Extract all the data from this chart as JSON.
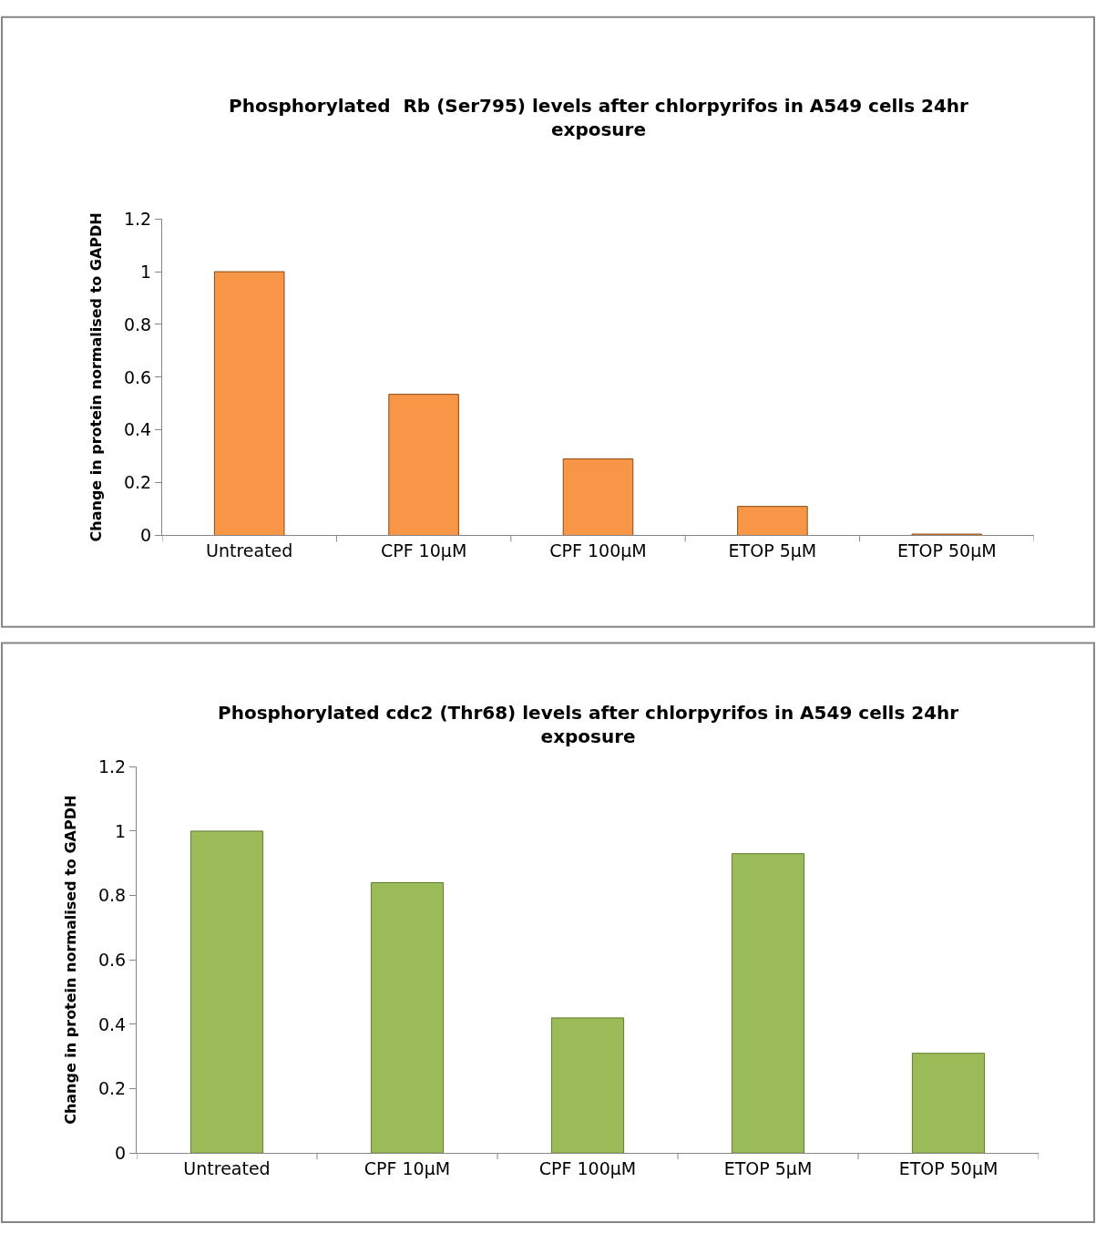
{
  "chart_data": [
    {
      "type": "bar",
      "title": "Phosphorylated  Rb (Ser795) levels after chlorpyrifos in A549 cells 24hr\nexposure",
      "ylabel": "Change in protein normalised to GAPDH",
      "categories": [
        "Untreated",
        "CPF 10µM",
        "CPF 100µM",
        "ETOP 5µM",
        "ETOP 50µM"
      ],
      "series": [
        {
          "color": "#f79646",
          "values": [
            1.0,
            0.535,
            0.29,
            0.11,
            0.005
          ]
        }
      ],
      "ylim": [
        0,
        1.2
      ],
      "yticks": [
        0,
        0.2,
        0.4,
        0.6,
        0.8,
        1,
        1.2
      ]
    },
    {
      "type": "bar",
      "title": "Phosphorylated cdc2 (Thr68) levels after chlorpyrifos in A549 cells 24hr\nexposure",
      "ylabel": "Change in protein normalised to GAPDH",
      "categories": [
        "Untreated",
        "CPF 10µM",
        "CPF 100µM",
        "ETOP 5µM",
        "ETOP 50µM"
      ],
      "series": [
        {
          "color": "#9bbb59",
          "values": [
            1.0,
            0.84,
            0.42,
            0.93,
            0.31
          ]
        }
      ],
      "ylim": [
        0,
        1.2
      ],
      "yticks": [
        0,
        0.2,
        0.4,
        0.6,
        0.8,
        1,
        1.2
      ]
    }
  ]
}
